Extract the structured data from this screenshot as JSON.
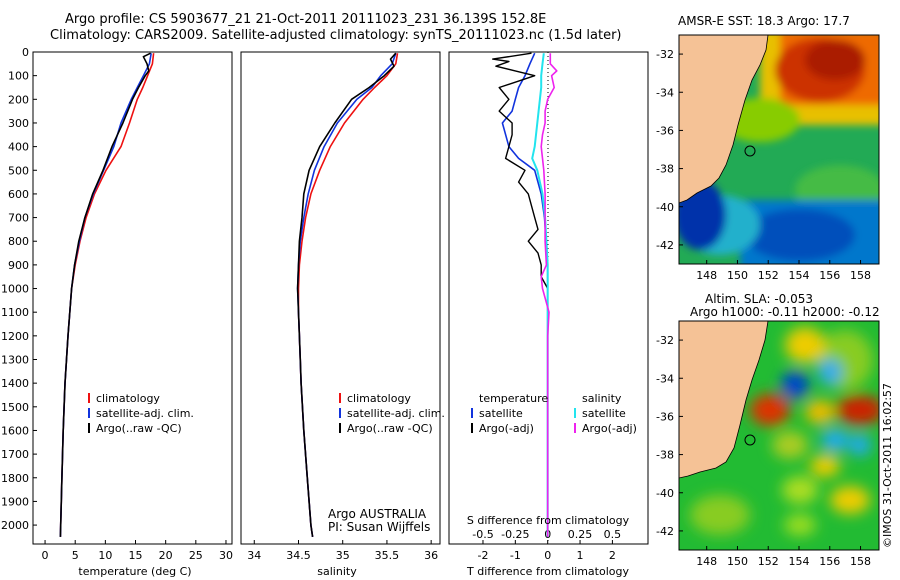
{
  "header": {
    "title_line1": "Argo profile: CS 5903677_21 21-Oct-2011 20111023_231 36.139S 152.8E",
    "title_line2": "Climatology: CARS2009. Satellite-adjusted climatology: synTS_20111023.nc (1.5d later)"
  },
  "credits": {
    "argo_owner": "Argo AUSTRALIA",
    "pi": "PI: Susan Wijffels",
    "imos": "©IMOS 31-Oct-2011 16:02:57"
  },
  "colors": {
    "climatology": "#ee1111",
    "satellite": "#1133dd",
    "argo": "#000000",
    "satellite_salinity": "#22e4ee",
    "argo_salinity": "#ee22ee",
    "land": "#f5c296"
  },
  "maps": {
    "sst_title": "AMSR-E SST: 18.3 Argo: 17.7",
    "sla_title1": "Altim. SLA: -0.053",
    "sla_title2": "Argo h1000: -0.11 h2000: -0.12",
    "lat_ticks": [
      "-32",
      "-34",
      "-36",
      "-38",
      "-40",
      "-42"
    ],
    "lon_ticks": [
      "148",
      "150",
      "152",
      "154",
      "156",
      "158"
    ]
  },
  "chart_data": [
    {
      "type": "line",
      "name": "temperature-profile",
      "xlabel": "temperature (deg C)",
      "ylabel": "",
      "xlim": [
        -2,
        31
      ],
      "ylim": [
        2080,
        0
      ],
      "xticks": [
        "0",
        "5",
        "10",
        "15",
        "20",
        "25",
        "30"
      ],
      "yticks": [
        "0",
        "100",
        "200",
        "300",
        "400",
        "500",
        "600",
        "700",
        "800",
        "900",
        "1000",
        "1100",
        "1200",
        "1300",
        "1400",
        "1500",
        "1600",
        "1700",
        "1800",
        "1900",
        "2000"
      ],
      "legend": [
        "climatology",
        "satellite-adj. clim.",
        "Argo(..raw -QC)"
      ],
      "series": [
        {
          "name": "climatology",
          "depth": [
            5,
            50,
            100,
            150,
            200,
            300,
            400,
            500,
            600,
            700,
            800,
            900,
            1000,
            1200,
            1400,
            1600,
            1800,
            2000,
            2050
          ],
          "values": [
            18.0,
            17.8,
            17.0,
            16.2,
            15.3,
            14.0,
            12.6,
            10.1,
            8.2,
            6.8,
            5.8,
            5.0,
            4.4,
            3.8,
            3.3,
            3.0,
            2.8,
            2.6,
            2.55
          ]
        },
        {
          "name": "satellite-adj. clim.",
          "depth": [
            5,
            50,
            100,
            150,
            200,
            300,
            400,
            500,
            600,
            700,
            800,
            900,
            1000,
            1200,
            1400,
            1600,
            1800,
            2000,
            2050
          ],
          "values": [
            17.6,
            17.3,
            16.3,
            15.3,
            14.3,
            12.6,
            11.4,
            9.7,
            8.0,
            6.6,
            5.7,
            4.9,
            4.4,
            3.8,
            3.3,
            3.0,
            2.8,
            2.6,
            2.55
          ]
        },
        {
          "name": "Argo(..raw -QC)",
          "depth": [
            5,
            20,
            50,
            80,
            100,
            150,
            200,
            300,
            400,
            500,
            600,
            700,
            800,
            900,
            1000,
            1200,
            1400,
            1600,
            1800,
            2000,
            2050
          ],
          "values": [
            17.5,
            16.3,
            16.9,
            17.2,
            16.6,
            15.5,
            14.5,
            12.9,
            11.1,
            9.6,
            7.9,
            6.6,
            5.6,
            4.9,
            4.4,
            3.8,
            3.3,
            3.0,
            2.8,
            2.6,
            2.55
          ]
        }
      ]
    },
    {
      "type": "line",
      "name": "salinity-profile",
      "xlabel": "salinity",
      "ylabel": "",
      "xlim": [
        33.85,
        36.1
      ],
      "ylim": [
        2080,
        0
      ],
      "xticks": [
        "34",
        "34.5",
        "35",
        "35.5",
        "36"
      ],
      "legend": [
        "climatology",
        "satellite-adj. clim.",
        "Argo(..raw -QC)"
      ],
      "series": [
        {
          "name": "climatology",
          "depth": [
            5,
            50,
            100,
            150,
            200,
            300,
            400,
            500,
            600,
            700,
            800,
            900,
            1000,
            1100,
            1200,
            1400,
            1600,
            1800,
            2000,
            2050
          ],
          "values": [
            35.62,
            35.6,
            35.5,
            35.36,
            35.23,
            35.02,
            34.86,
            34.74,
            34.64,
            34.58,
            34.54,
            34.51,
            34.5,
            34.5,
            34.51,
            34.53,
            34.56,
            34.6,
            34.64,
            34.66
          ]
        },
        {
          "name": "satellite-adj. clim.",
          "depth": [
            5,
            50,
            100,
            150,
            200,
            300,
            400,
            500,
            600,
            700,
            800,
            900,
            1000,
            1100,
            1200,
            1400,
            1600,
            1800,
            2000,
            2050
          ],
          "values": [
            35.6,
            35.56,
            35.43,
            35.33,
            35.16,
            34.94,
            34.79,
            34.68,
            34.61,
            34.56,
            34.52,
            34.5,
            34.49,
            34.5,
            34.51,
            34.53,
            34.56,
            34.6,
            34.64,
            34.66
          ]
        },
        {
          "name": "Argo(..raw -QC)",
          "depth": [
            5,
            30,
            60,
            100,
            150,
            200,
            300,
            400,
            500,
            600,
            700,
            800,
            900,
            1000,
            1100,
            1200,
            1300,
            1400,
            1600,
            1800,
            2000,
            2050
          ],
          "values": [
            35.6,
            35.54,
            35.58,
            35.47,
            35.3,
            35.1,
            34.91,
            34.74,
            34.62,
            34.56,
            34.54,
            34.51,
            34.5,
            34.49,
            34.5,
            34.51,
            34.52,
            34.53,
            34.56,
            34.6,
            34.64,
            34.66
          ]
        }
      ]
    },
    {
      "type": "line",
      "name": "difference-profile",
      "xlabel": "T difference from climatology",
      "xlabel_top": "S difference from climatology",
      "xlim": [
        -3.05,
        3.1
      ],
      "ylim": [
        2080,
        0
      ],
      "xticks": [
        "-2",
        "-1",
        "0",
        "1",
        "2"
      ],
      "top_ticks": [
        "-0.5",
        "-0.25",
        "0",
        "0.25",
        "0.5"
      ],
      "legend_temperature_title": "temperature",
      "legend_salinity_title": "salinity",
      "legend_temperature": [
        "satellite",
        "Argo(-adj)"
      ],
      "legend_salinity": [
        "satellite",
        "Argo(-adj)"
      ],
      "series": [
        {
          "name": "temperature satellite",
          "depth": [
            5,
            50,
            100,
            150,
            200,
            250,
            300,
            400,
            450,
            500,
            600,
            700,
            800,
            900,
            1000,
            1200,
            1400,
            1600,
            2000,
            2050
          ],
          "values": [
            -0.4,
            -0.55,
            -0.7,
            -0.9,
            -1.0,
            -1.1,
            -1.4,
            -1.2,
            -0.9,
            -0.4,
            -0.2,
            -0.1,
            -0.05,
            0,
            0,
            0,
            0,
            0,
            0,
            0
          ]
        },
        {
          "name": "temperature Argo(-adj)",
          "depth": [
            5,
            30,
            40,
            60,
            80,
            100,
            150,
            200,
            250,
            300,
            350,
            400,
            450,
            500,
            550,
            600,
            650,
            700,
            750,
            800,
            850,
            900,
            950,
            1000,
            1200,
            1400,
            1600,
            2000,
            2050
          ],
          "values": [
            -0.5,
            -1.7,
            -1.2,
            -1.6,
            -1.0,
            -0.4,
            -1.5,
            -1.2,
            -1.5,
            -1.1,
            -1.1,
            -1.2,
            -1.3,
            -0.7,
            -0.9,
            -0.6,
            -0.5,
            -0.4,
            -0.3,
            -0.6,
            -0.3,
            -0.2,
            -0.2,
            0,
            0,
            0,
            0,
            0,
            0
          ]
        },
        {
          "name": "salinity satellite",
          "depth": [
            5,
            50,
            100,
            150,
            200,
            250,
            300,
            350,
            400,
            450,
            500,
            600,
            700,
            800,
            900,
            1000,
            1200,
            1600,
            2000,
            2050
          ],
          "values": [
            -0.03,
            -0.04,
            -0.05,
            -0.05,
            -0.06,
            -0.07,
            -0.08,
            -0.09,
            -0.1,
            -0.12,
            -0.08,
            -0.04,
            -0.02,
            -0.01,
            0,
            0,
            0,
            0,
            0,
            0
          ]
        },
        {
          "name": "salinity Argo(-adj)",
          "depth": [
            5,
            50,
            80,
            100,
            150,
            200,
            250,
            300,
            350,
            400,
            450,
            500,
            600,
            700,
            800,
            900,
            950,
            1000,
            1100,
            1200,
            1600,
            2000,
            2050
          ],
          "values": [
            0.02,
            0.02,
            0.07,
            0.03,
            0.05,
            0.0,
            -0.02,
            -0.02,
            -0.04,
            -0.05,
            -0.04,
            -0.03,
            -0.02,
            -0.02,
            -0.02,
            -0.01,
            -0.05,
            -0.04,
            0.01,
            0,
            0,
            0,
            0
          ]
        }
      ]
    }
  ]
}
